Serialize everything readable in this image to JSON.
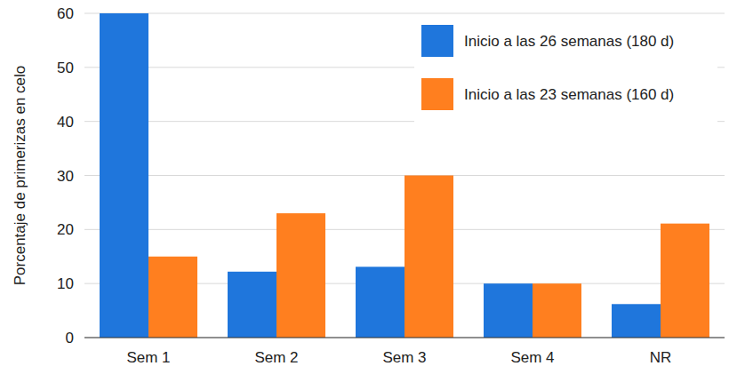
{
  "chart_data": {
    "type": "bar",
    "y_label": "Porcentaje de primerizas en celo",
    "categories": [
      "Sem 1",
      "Sem 2",
      "Sem 3",
      "Sem 4",
      "NR"
    ],
    "series": [
      {
        "name": "Inicio a las 26 semanas (180 d)",
        "color": "#1f76dc",
        "values": [
          60,
          12.2,
          13.1,
          10,
          6.2
        ]
      },
      {
        "name": "Inicio a las 23 semanas (160 d)",
        "color": "#ff7f1f",
        "values": [
          15,
          23,
          30,
          10,
          21.1
        ]
      }
    ],
    "ylim": [
      0,
      60
    ],
    "yticks": [
      0,
      10,
      20,
      30,
      40,
      50,
      60
    ],
    "grid": true,
    "legend": "upper right"
  }
}
